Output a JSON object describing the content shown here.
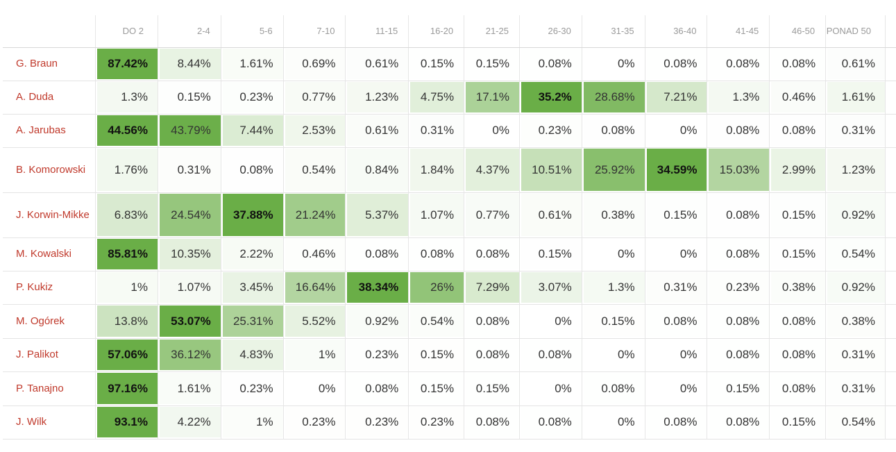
{
  "chart_data": {
    "type": "heatmap",
    "columns": [
      "DO 2",
      "2-4",
      "5-6",
      "7-10",
      "11-15",
      "16-20",
      "21-25",
      "26-30",
      "31-35",
      "36-40",
      "41-45",
      "46-50",
      "PONAD 50"
    ],
    "rows": [
      {
        "name": "G. Braun",
        "values": [
          "87.42%",
          "8.44%",
          "1.61%",
          "0.69%",
          "0.61%",
          "0.15%",
          "0.15%",
          "0.08%",
          "0%",
          "0.08%",
          "0.08%",
          "0.08%",
          "0.61%"
        ]
      },
      {
        "name": "A. Duda",
        "values": [
          "1.3%",
          "0.15%",
          "0.23%",
          "0.77%",
          "1.23%",
          "4.75%",
          "17.1%",
          "35.2%",
          "28.68%",
          "7.21%",
          "1.3%",
          "0.46%",
          "1.61%"
        ]
      },
      {
        "name": "A. Jarubas",
        "values": [
          "44.56%",
          "43.79%",
          "7.44%",
          "2.53%",
          "0.61%",
          "0.31%",
          "0%",
          "0.23%",
          "0.08%",
          "0%",
          "0.08%",
          "0.08%",
          "0.31%"
        ]
      },
      {
        "name": "B. Komorowski",
        "values": [
          "1.76%",
          "0.31%",
          "0.08%",
          "0.54%",
          "0.84%",
          "1.84%",
          "4.37%",
          "10.51%",
          "25.92%",
          "34.59%",
          "15.03%",
          "2.99%",
          "1.23%"
        ]
      },
      {
        "name": "J. Korwin-Mikke",
        "values": [
          "6.83%",
          "24.54%",
          "37.88%",
          "21.24%",
          "5.37%",
          "1.07%",
          "0.77%",
          "0.61%",
          "0.38%",
          "0.15%",
          "0.08%",
          "0.15%",
          "0.92%"
        ]
      },
      {
        "name": "M. Kowalski",
        "values": [
          "85.81%",
          "10.35%",
          "2.22%",
          "0.46%",
          "0.08%",
          "0.08%",
          "0.08%",
          "0.15%",
          "0%",
          "0%",
          "0.08%",
          "0.15%",
          "0.54%"
        ]
      },
      {
        "name": "P. Kukiz",
        "values": [
          "1%",
          "1.07%",
          "3.45%",
          "16.64%",
          "38.34%",
          "26%",
          "7.29%",
          "3.07%",
          "1.3%",
          "0.31%",
          "0.23%",
          "0.38%",
          "0.92%"
        ]
      },
      {
        "name": "M. Ogórek",
        "values": [
          "13.8%",
          "53.07%",
          "25.31%",
          "5.52%",
          "0.92%",
          "0.54%",
          "0.08%",
          "0%",
          "0.15%",
          "0.08%",
          "0.08%",
          "0.08%",
          "0.38%"
        ]
      },
      {
        "name": "J. Palikot",
        "values": [
          "57.06%",
          "36.12%",
          "4.83%",
          "1%",
          "0.23%",
          "0.15%",
          "0.08%",
          "0.08%",
          "0%",
          "0%",
          "0.08%",
          "0.08%",
          "0.31%"
        ]
      },
      {
        "name": "P. Tanajno",
        "values": [
          "97.16%",
          "1.61%",
          "0.23%",
          "0%",
          "0.08%",
          "0.15%",
          "0.15%",
          "0%",
          "0.08%",
          "0%",
          "0.15%",
          "0.08%",
          "0.31%"
        ]
      },
      {
        "name": "J. Wilk",
        "values": [
          "93.1%",
          "4.22%",
          "1%",
          "0.23%",
          "0.23%",
          "0.23%",
          "0.08%",
          "0.08%",
          "0%",
          "0.08%",
          "0.08%",
          "0.15%",
          "0.54%"
        ]
      }
    ],
    "colors": {
      "low": "#ffffff",
      "high": "#6aae47",
      "name_text": "#c0392b",
      "header_text": "#9a9a9a"
    }
  }
}
